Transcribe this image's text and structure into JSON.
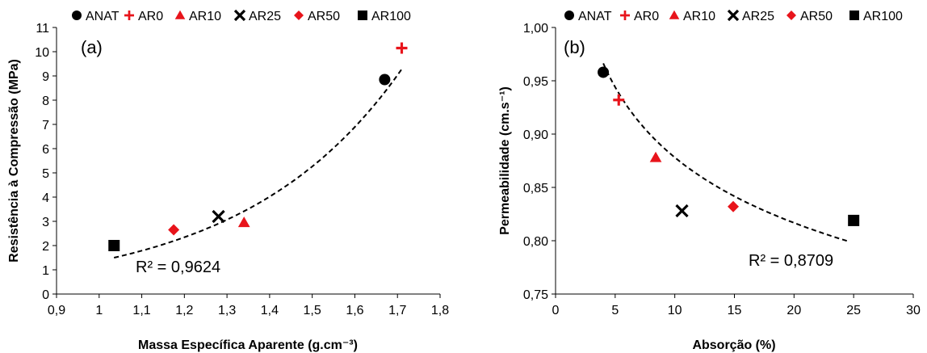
{
  "colors": {
    "black": "#000000",
    "red": "#e8141b"
  },
  "chart_data": [
    {
      "panel": "(a)",
      "type": "scatter",
      "xlabel": "Massa Específica Aparente (g.cm⁻³)",
      "ylabel": "Resistência à Compressão (MPa)",
      "xlim": [
        0.9,
        1.8
      ],
      "ylim": [
        0,
        11
      ],
      "xticks": [
        "0,9",
        "1",
        "1,1",
        "1,2",
        "1,3",
        "1,4",
        "1,5",
        "1,6",
        "1,7",
        "1,8"
      ],
      "yticks": [
        "0",
        "1",
        "2",
        "3",
        "4",
        "5",
        "6",
        "7",
        "8",
        "9",
        "10",
        "11"
      ],
      "grid": false,
      "legend_position": "top",
      "series": [
        {
          "name": "ANAT",
          "marker": "circle",
          "color": "#000000",
          "x": 1.67,
          "y": 8.85
        },
        {
          "name": "AR0",
          "marker": "plus",
          "color": "#e8141b",
          "x": 1.71,
          "y": 10.15
        },
        {
          "name": "AR10",
          "marker": "triangle",
          "color": "#e8141b",
          "x": 1.34,
          "y": 2.95
        },
        {
          "name": "AR25",
          "marker": "x",
          "color": "#000000",
          "x": 1.28,
          "y": 3.2
        },
        {
          "name": "AR50",
          "marker": "diamond",
          "color": "#e8141b",
          "x": 1.175,
          "y": 2.65
        },
        {
          "name": "AR100",
          "marker": "square",
          "color": "#000000",
          "x": 1.035,
          "y": 2.0
        }
      ],
      "trendline": {
        "type": "exponential",
        "a": 0.0917,
        "b": 2.7,
        "x_range": [
          1.035,
          1.71
        ]
      },
      "r2_label": "R² = 0,9624"
    },
    {
      "panel": "(b)",
      "type": "scatter",
      "xlabel": "Absorção (%)",
      "ylabel": "Permeabilidade (cm.s⁻¹)",
      "xlim": [
        0,
        30
      ],
      "ylim": [
        0.75,
        1.0
      ],
      "xticks": [
        "0",
        "5",
        "10",
        "15",
        "20",
        "25",
        "30"
      ],
      "yticks": [
        "0,75",
        "0,80",
        "0,85",
        "0,90",
        "0,95",
        "1,00"
      ],
      "grid": false,
      "legend_position": "top",
      "series": [
        {
          "name": "ANAT",
          "marker": "circle",
          "color": "#000000",
          "x": 4.0,
          "y": 0.958
        },
        {
          "name": "AR0",
          "marker": "plus",
          "color": "#e8141b",
          "x": 5.3,
          "y": 0.932
        },
        {
          "name": "AR10",
          "marker": "triangle",
          "color": "#e8141b",
          "x": 8.4,
          "y": 0.878
        },
        {
          "name": "AR25",
          "marker": "x",
          "color": "#000000",
          "x": 10.6,
          "y": 0.828
        },
        {
          "name": "AR50",
          "marker": "diamond",
          "color": "#e8141b",
          "x": 14.9,
          "y": 0.832
        },
        {
          "name": "AR100",
          "marker": "square",
          "color": "#000000",
          "x": 25.0,
          "y": 0.819
        }
      ],
      "trendline": {
        "type": "power",
        "a": 1.117,
        "b": -0.1045,
        "x_range": [
          4.0,
          24.5
        ]
      },
      "r2_label": "R² = 0,8709"
    }
  ]
}
